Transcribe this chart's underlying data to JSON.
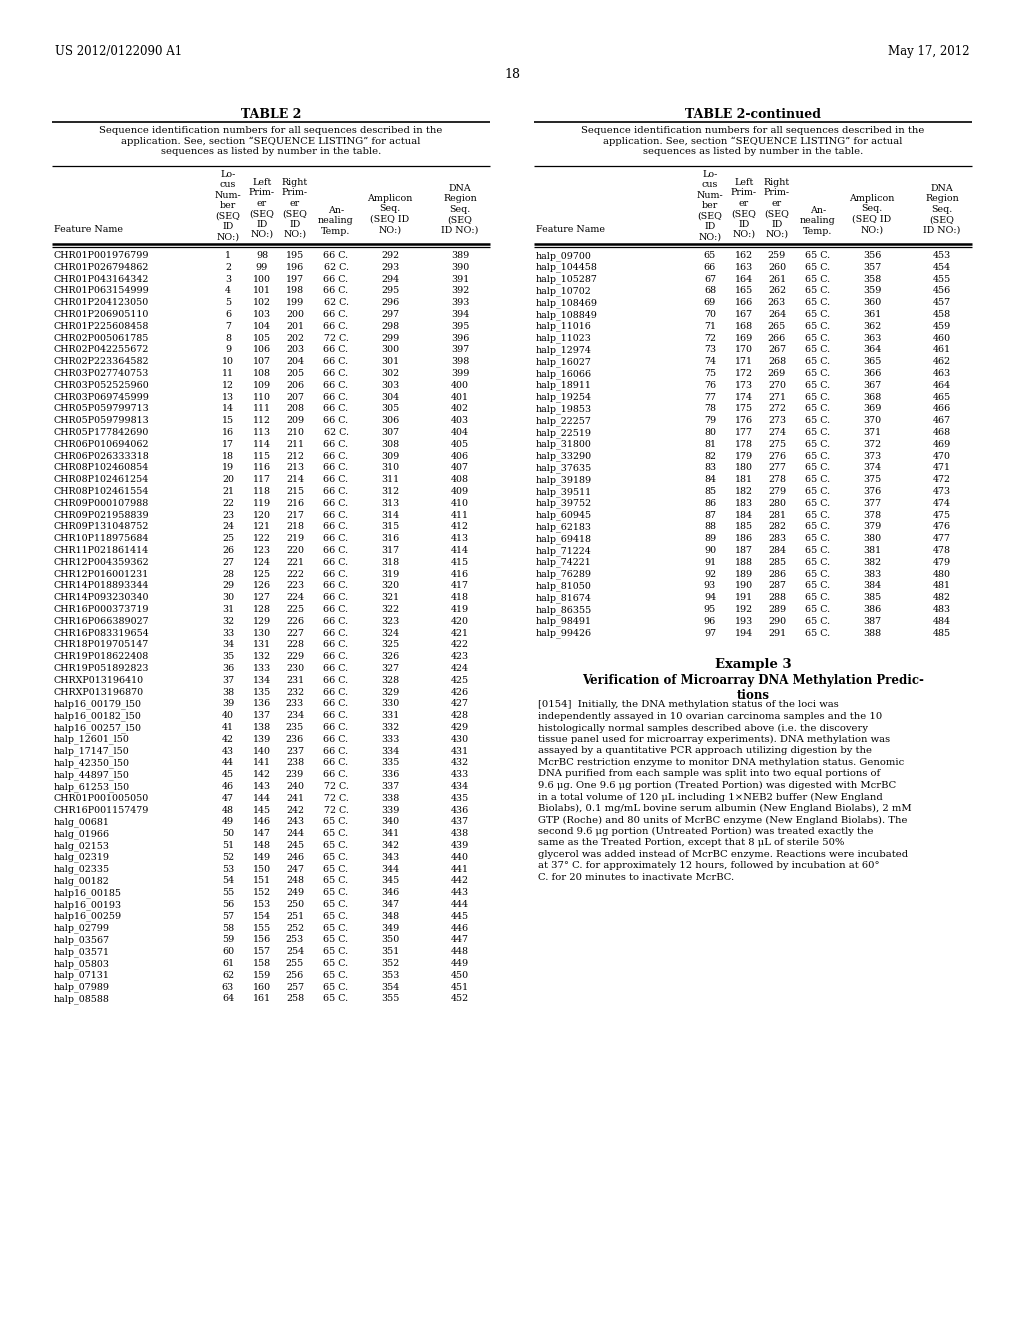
{
  "page_number": "18",
  "patent_left": "US 2012/0122090 A1",
  "patent_right": "May 17, 2012",
  "table2_title": "TABLE 2",
  "table2cont_title": "TABLE 2-continued",
  "table_description": "Sequence identification numbers for all sequences described in the\napplication. See, section “SEQUENCE LISTING” for actual\nsequences as listed by number in the table.",
  "left_data": [
    [
      "CHR01P001976799",
      "1",
      "98",
      "195",
      "66 C.",
      "292",
      "389"
    ],
    [
      "CHR01P026794862",
      "2",
      "99",
      "196",
      "62 C.",
      "293",
      "390"
    ],
    [
      "CHR01P043164342",
      "3",
      "100",
      "197",
      "66 C.",
      "294",
      "391"
    ],
    [
      "CHR01P063154999",
      "4",
      "101",
      "198",
      "66 C.",
      "295",
      "392"
    ],
    [
      "CHR01P204123050",
      "5",
      "102",
      "199",
      "62 C.",
      "296",
      "393"
    ],
    [
      "CHR01P206905110",
      "6",
      "103",
      "200",
      "66 C.",
      "297",
      "394"
    ],
    [
      "CHR01P225608458",
      "7",
      "104",
      "201",
      "66 C.",
      "298",
      "395"
    ],
    [
      "CHR02P005061785",
      "8",
      "105",
      "202",
      "72 C.",
      "299",
      "396"
    ],
    [
      "CHR02P042255672",
      "9",
      "106",
      "203",
      "66 C.",
      "300",
      "397"
    ],
    [
      "CHR02P223364582",
      "10",
      "107",
      "204",
      "66 C.",
      "301",
      "398"
    ],
    [
      "CHR03P027740753",
      "11",
      "108",
      "205",
      "66 C.",
      "302",
      "399"
    ],
    [
      "CHR03P052525960",
      "12",
      "109",
      "206",
      "66 C.",
      "303",
      "400"
    ],
    [
      "CHR03P069745999",
      "13",
      "110",
      "207",
      "66 C.",
      "304",
      "401"
    ],
    [
      "CHR05P059799713",
      "14",
      "111",
      "208",
      "66 C.",
      "305",
      "402"
    ],
    [
      "CHR05P059799813",
      "15",
      "112",
      "209",
      "66 C.",
      "306",
      "403"
    ],
    [
      "CHR05P177842690",
      "16",
      "113",
      "210",
      "62 C.",
      "307",
      "404"
    ],
    [
      "CHR06P010694062",
      "17",
      "114",
      "211",
      "66 C.",
      "308",
      "405"
    ],
    [
      "CHR06P026333318",
      "18",
      "115",
      "212",
      "66 C.",
      "309",
      "406"
    ],
    [
      "CHR08P102460854",
      "19",
      "116",
      "213",
      "66 C.",
      "310",
      "407"
    ],
    [
      "CHR08P102461254",
      "20",
      "117",
      "214",
      "66 C.",
      "311",
      "408"
    ],
    [
      "CHR08P102461554",
      "21",
      "118",
      "215",
      "66 C.",
      "312",
      "409"
    ],
    [
      "CHR09P000107988",
      "22",
      "119",
      "216",
      "66 C.",
      "313",
      "410"
    ],
    [
      "CHR09P021958839",
      "23",
      "120",
      "217",
      "66 C.",
      "314",
      "411"
    ],
    [
      "CHR09P131048752",
      "24",
      "121",
      "218",
      "66 C.",
      "315",
      "412"
    ],
    [
      "CHR10P118975684",
      "25",
      "122",
      "219",
      "66 C.",
      "316",
      "413"
    ],
    [
      "CHR11P021861414",
      "26",
      "123",
      "220",
      "66 C.",
      "317",
      "414"
    ],
    [
      "CHR12P004359362",
      "27",
      "124",
      "221",
      "66 C.",
      "318",
      "415"
    ],
    [
      "CHR12P016001231",
      "28",
      "125",
      "222",
      "66 C.",
      "319",
      "416"
    ],
    [
      "CHR14P018893344",
      "29",
      "126",
      "223",
      "66 C.",
      "320",
      "417"
    ],
    [
      "CHR14P093230340",
      "30",
      "127",
      "224",
      "66 C.",
      "321",
      "418"
    ],
    [
      "CHR16P000373719",
      "31",
      "128",
      "225",
      "66 C.",
      "322",
      "419"
    ],
    [
      "CHR16P066389027",
      "32",
      "129",
      "226",
      "66 C.",
      "323",
      "420"
    ],
    [
      "CHR16P083319654",
      "33",
      "130",
      "227",
      "66 C.",
      "324",
      "421"
    ],
    [
      "CHR18P019705147",
      "34",
      "131",
      "228",
      "66 C.",
      "325",
      "422"
    ],
    [
      "CHR19P018622408",
      "35",
      "132",
      "229",
      "66 C.",
      "326",
      "423"
    ],
    [
      "CHR19P051892823",
      "36",
      "133",
      "230",
      "66 C.",
      "327",
      "424"
    ],
    [
      "CHRXP013196410",
      "37",
      "134",
      "231",
      "66 C.",
      "328",
      "425"
    ],
    [
      "CHRXP013196870",
      "38",
      "135",
      "232",
      "66 C.",
      "329",
      "426"
    ],
    [
      "halp16_00179_l50",
      "39",
      "136",
      "233",
      "66 C.",
      "330",
      "427"
    ],
    [
      "halp16_00182_l50",
      "40",
      "137",
      "234",
      "66 C.",
      "331",
      "428"
    ],
    [
      "halp16_00257_l50",
      "41",
      "138",
      "235",
      "66 C.",
      "332",
      "429"
    ],
    [
      "halp_12601_l50",
      "42",
      "139",
      "236",
      "66 C.",
      "333",
      "430"
    ],
    [
      "halp_17147_l50",
      "43",
      "140",
      "237",
      "66 C.",
      "334",
      "431"
    ],
    [
      "halp_42350_l50",
      "44",
      "141",
      "238",
      "66 C.",
      "335",
      "432"
    ],
    [
      "halp_44897_l50",
      "45",
      "142",
      "239",
      "66 C.",
      "336",
      "433"
    ],
    [
      "halp_61253_l50",
      "46",
      "143",
      "240",
      "72 C.",
      "337",
      "434"
    ],
    [
      "CHR01P001005050",
      "47",
      "144",
      "241",
      "72 C.",
      "338",
      "435"
    ],
    [
      "CHR16P001157479",
      "48",
      "145",
      "242",
      "72 C.",
      "339",
      "436"
    ],
    [
      "halg_00681",
      "49",
      "146",
      "243",
      "65 C.",
      "340",
      "437"
    ],
    [
      "halg_01966",
      "50",
      "147",
      "244",
      "65 C.",
      "341",
      "438"
    ],
    [
      "halg_02153",
      "51",
      "148",
      "245",
      "65 C.",
      "342",
      "439"
    ],
    [
      "halg_02319",
      "52",
      "149",
      "246",
      "65 C.",
      "343",
      "440"
    ],
    [
      "halg_02335",
      "53",
      "150",
      "247",
      "65 C.",
      "344",
      "441"
    ],
    [
      "halg_00182",
      "54",
      "151",
      "248",
      "65 C.",
      "345",
      "442"
    ],
    [
      "halp16_00185",
      "55",
      "152",
      "249",
      "65 C.",
      "346",
      "443"
    ],
    [
      "halp16_00193",
      "56",
      "153",
      "250",
      "65 C.",
      "347",
      "444"
    ],
    [
      "halp16_00259",
      "57",
      "154",
      "251",
      "65 C.",
      "348",
      "445"
    ],
    [
      "halp_02799",
      "58",
      "155",
      "252",
      "65 C.",
      "349",
      "446"
    ],
    [
      "halp_03567",
      "59",
      "156",
      "253",
      "65 C.",
      "350",
      "447"
    ],
    [
      "halp_03571",
      "60",
      "157",
      "254",
      "65 C.",
      "351",
      "448"
    ],
    [
      "halp_05803",
      "61",
      "158",
      "255",
      "65 C.",
      "352",
      "449"
    ],
    [
      "halp_07131",
      "62",
      "159",
      "256",
      "65 C.",
      "353",
      "450"
    ],
    [
      "halp_07989",
      "63",
      "160",
      "257",
      "65 C.",
      "354",
      "451"
    ],
    [
      "halp_08588",
      "64",
      "161",
      "258",
      "65 C.",
      "355",
      "452"
    ]
  ],
  "right_data": [
    [
      "halp_09700",
      "65",
      "162",
      "259",
      "65 C.",
      "356",
      "453"
    ],
    [
      "halp_104458",
      "66",
      "163",
      "260",
      "65 C.",
      "357",
      "454"
    ],
    [
      "halp_105287",
      "67",
      "164",
      "261",
      "65 C.",
      "358",
      "455"
    ],
    [
      "halp_10702",
      "68",
      "165",
      "262",
      "65 C.",
      "359",
      "456"
    ],
    [
      "halp_108469",
      "69",
      "166",
      "263",
      "65 C.",
      "360",
      "457"
    ],
    [
      "halp_108849",
      "70",
      "167",
      "264",
      "65 C.",
      "361",
      "458"
    ],
    [
      "halp_11016",
      "71",
      "168",
      "265",
      "65 C.",
      "362",
      "459"
    ],
    [
      "halp_11023",
      "72",
      "169",
      "266",
      "65 C.",
      "363",
      "460"
    ],
    [
      "halp_12974",
      "73",
      "170",
      "267",
      "65 C.",
      "364",
      "461"
    ],
    [
      "halp_16027",
      "74",
      "171",
      "268",
      "65 C.",
      "365",
      "462"
    ],
    [
      "halp_16066",
      "75",
      "172",
      "269",
      "65 C.",
      "366",
      "463"
    ],
    [
      "halp_18911",
      "76",
      "173",
      "270",
      "65 C.",
      "367",
      "464"
    ],
    [
      "halp_19254",
      "77",
      "174",
      "271",
      "65 C.",
      "368",
      "465"
    ],
    [
      "halp_19853",
      "78",
      "175",
      "272",
      "65 C.",
      "369",
      "466"
    ],
    [
      "halp_22257",
      "79",
      "176",
      "273",
      "65 C.",
      "370",
      "467"
    ],
    [
      "halp_22519",
      "80",
      "177",
      "274",
      "65 C.",
      "371",
      "468"
    ],
    [
      "halp_31800",
      "81",
      "178",
      "275",
      "65 C.",
      "372",
      "469"
    ],
    [
      "halp_33290",
      "82",
      "179",
      "276",
      "65 C.",
      "373",
      "470"
    ],
    [
      "halp_37635",
      "83",
      "180",
      "277",
      "65 C.",
      "374",
      "471"
    ],
    [
      "halp_39189",
      "84",
      "181",
      "278",
      "65 C.",
      "375",
      "472"
    ],
    [
      "halp_39511",
      "85",
      "182",
      "279",
      "65 C.",
      "376",
      "473"
    ],
    [
      "halp_39752",
      "86",
      "183",
      "280",
      "65 C.",
      "377",
      "474"
    ],
    [
      "halp_60945",
      "87",
      "184",
      "281",
      "65 C.",
      "378",
      "475"
    ],
    [
      "halp_62183",
      "88",
      "185",
      "282",
      "65 C.",
      "379",
      "476"
    ],
    [
      "halp_69418",
      "89",
      "186",
      "283",
      "65 C.",
      "380",
      "477"
    ],
    [
      "halp_71224",
      "90",
      "187",
      "284",
      "65 C.",
      "381",
      "478"
    ],
    [
      "halp_74221",
      "91",
      "188",
      "285",
      "65 C.",
      "382",
      "479"
    ],
    [
      "halp_76289",
      "92",
      "189",
      "286",
      "65 C.",
      "383",
      "480"
    ],
    [
      "halp_81050",
      "93",
      "190",
      "287",
      "65 C.",
      "384",
      "481"
    ],
    [
      "halp_81674",
      "94",
      "191",
      "288",
      "65 C.",
      "385",
      "482"
    ],
    [
      "halp_86355",
      "95",
      "192",
      "289",
      "65 C.",
      "386",
      "483"
    ],
    [
      "halp_98491",
      "96",
      "193",
      "290",
      "65 C.",
      "387",
      "484"
    ],
    [
      "halp_99426",
      "97",
      "194",
      "291",
      "65 C.",
      "388",
      "485"
    ]
  ],
  "example3_title": "Example 3",
  "example3_subtitle": "Verification of Microarray DNA Methylation Predic-\ntions",
  "example3_para": "[0154]  Initially, the DNA methylation status of the loci was independently assayed in 10 ovarian carcinoma samples and the 10 histologically normal samples described above (i.e. the discovery tissue panel used for microarray experiments). DNA methylation was assayed by a quantitative PCR approach utilizing digestion by the McrBC restriction enzyme to monitor DNA methylation status. Genomic DNA purified from each sample was split into two equal portions of 9.6 μg. One 9.6 μg portion (Treated Portion) was digested with McrBC in a total volume of 120 μL including 1×NEB2 buffer (New England Biolabs), 0.1 mg/mL bovine serum albumin (New England Biolabs), 2 mM GTP (Roche) and 80 units of McrBC enzyme (New England Biolabs). The second 9.6 μg portion (Untreated Portion) was treated exactly the same as the Treated Portion, except that 8 μL of sterile 50% glycerol was added instead of McrBC enzyme. Reactions were incubated at 37° C. for approximately 12 hours, followed by incubation at 60° C. for 20 minutes to inactivate McrBC."
}
